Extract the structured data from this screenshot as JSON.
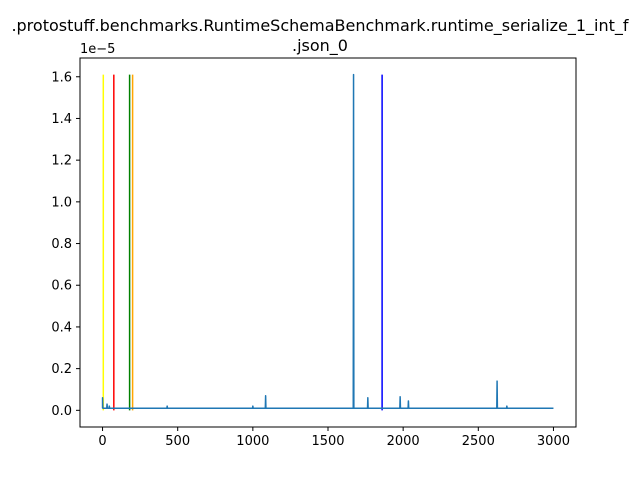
{
  "chart_data": {
    "type": "line",
    "title_line1": ".protostuff.benchmarks.RuntimeSchemaBenchmark.runtime_serialize_1_int_f",
    "title_line2": ".json_0",
    "xlabel": "",
    "ylabel": "",
    "y_offset_label": "1e−5",
    "xlim": [
      -150,
      3150
    ],
    "ylim": [
      -0.08,
      1.69
    ],
    "x_ticks": [
      0,
      500,
      1000,
      1500,
      2000,
      2500,
      3000
    ],
    "x_tick_labels": [
      "0",
      "500",
      "1000",
      "1500",
      "2000",
      "2500",
      "3000"
    ],
    "y_ticks": [
      0.0,
      0.2,
      0.4,
      0.6,
      0.8,
      1.0,
      1.2,
      1.4,
      1.6
    ],
    "y_tick_labels": [
      "0.0",
      "0.2",
      "0.4",
      "0.6",
      "0.8",
      "1.0",
      "1.2",
      "1.4",
      "1.6"
    ],
    "series": [
      {
        "color": "#1f77b4",
        "baseline": 0.01,
        "x_range": [
          0,
          3000
        ],
        "spikes": [
          {
            "x": 0,
            "y": 0.06
          },
          {
            "x": 30,
            "y": 0.03
          },
          {
            "x": 45,
            "y": 0.02
          },
          {
            "x": 430,
            "y": 0.02
          },
          {
            "x": 1000,
            "y": 0.02
          },
          {
            "x": 1085,
            "y": 0.07
          },
          {
            "x": 1670,
            "y": 1.61
          },
          {
            "x": 1765,
            "y": 0.06
          },
          {
            "x": 1980,
            "y": 0.065
          },
          {
            "x": 2035,
            "y": 0.045
          },
          {
            "x": 2625,
            "y": 0.14
          },
          {
            "x": 2690,
            "y": 0.02
          }
        ]
      }
    ],
    "vertical_lines": [
      {
        "x": 5,
        "color": "#ffff00",
        "y_range": [
          0.0,
          1.61
        ]
      },
      {
        "x": 75,
        "color": "#ff0000",
        "y_range": [
          0.0,
          1.61
        ]
      },
      {
        "x": 180,
        "color": "#008000",
        "y_range": [
          0.0,
          1.61
        ]
      },
      {
        "x": 200,
        "color": "#ffa500",
        "y_range": [
          0.0,
          1.61
        ]
      },
      {
        "x": 1860,
        "color": "#0000ff",
        "y_range": [
          0.0,
          1.61
        ]
      }
    ],
    "grid": false,
    "legend": "none"
  }
}
